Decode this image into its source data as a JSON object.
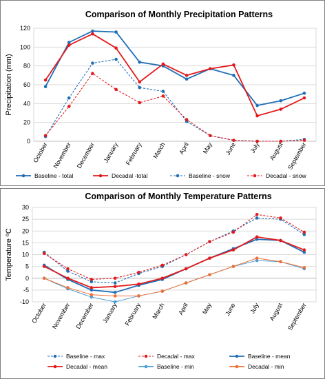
{
  "chart_data": [
    {
      "type": "line",
      "title": "Comparison of Monthly Precipitation Patterns",
      "ylabel": "Precipitation (mm)",
      "xlabel": "",
      "ylim": [
        0,
        120
      ],
      "yticks": [
        "0",
        "20",
        "40",
        "60",
        "80",
        "100",
        "120"
      ],
      "grid": "horizontal",
      "legend_position": "bottom",
      "categories": [
        "October",
        "November",
        "December",
        "January",
        "February",
        "March",
        "April",
        "May",
        "June",
        "July",
        "August",
        "September"
      ],
      "series": [
        {
          "name": "Baseline - total",
          "color": "#1f6fb8",
          "style": "solid",
          "values": [
            58,
            105,
            117,
            116,
            84,
            80,
            66,
            77,
            70,
            38,
            43,
            51
          ]
        },
        {
          "name": "Decadal -total",
          "color": "#e31a1c",
          "style": "solid",
          "values": [
            65,
            102,
            114,
            99,
            63,
            82,
            70,
            77,
            81,
            27,
            34,
            46
          ]
        },
        {
          "name": "Baseline - snow",
          "color": "#1f6fb8",
          "style": "dashed",
          "values": [
            5,
            46,
            83,
            87,
            57,
            53,
            21,
            6,
            1,
            0,
            0,
            2
          ]
        },
        {
          "name": "Decadal - snow",
          "color": "#e31a1c",
          "style": "dashed",
          "values": [
            6,
            37,
            72,
            55,
            41,
            48,
            23,
            6,
            1,
            0,
            0,
            1
          ]
        }
      ]
    },
    {
      "type": "line",
      "title": "Comparison of Monthly Temperature Patterns",
      "ylabel": "Temperature ºC",
      "xlabel": "",
      "ylim": [
        -10,
        30
      ],
      "yticks": [
        "-10",
        "-5",
        "0",
        "5",
        "10",
        "15",
        "20",
        "25",
        "30"
      ],
      "grid": "horizontal",
      "legend_position": "bottom",
      "categories": [
        "October",
        "November",
        "December",
        "January",
        "February",
        "March",
        "April",
        "May",
        "June",
        "July",
        "August",
        "September"
      ],
      "series": [
        {
          "name": "Baseline - max",
          "color": "#1f6fb8",
          "style": "dashed",
          "values": [
            11,
            3,
            -1.5,
            -2,
            2,
            5,
            10,
            15.5,
            20,
            25.5,
            25,
            18.5
          ]
        },
        {
          "name": "Decadal - max",
          "color": "#e31a1c",
          "style": "dashed",
          "values": [
            10.5,
            4,
            -0.5,
            0,
            2.5,
            5.5,
            10,
            15.5,
            19.5,
            27,
            25.5,
            19.5
          ]
        },
        {
          "name": "Baseline - mean",
          "color": "#1f6fb8",
          "style": "solid",
          "values": [
            5.5,
            -0.5,
            -5,
            -6,
            -3,
            -0.5,
            4,
            8.5,
            12.5,
            16.5,
            16,
            11
          ]
        },
        {
          "name": "Decadal - mean",
          "color": "#e31a1c",
          "style": "solid",
          "values": [
            5,
            0,
            -4,
            -3.5,
            -2.5,
            0,
            4,
            8.5,
            12,
            17.5,
            16,
            12
          ]
        },
        {
          "name": "Baseline - min",
          "color": "#4a9fd8",
          "style": "solid-thin",
          "values": [
            0,
            -4.5,
            -8,
            -10,
            -7.5,
            -5.5,
            -2,
            1.5,
            5,
            7.5,
            7,
            4
          ]
        },
        {
          "name": "Decadal - min",
          "color": "#f07033",
          "style": "solid-thin",
          "values": [
            0,
            -4,
            -7,
            -7.5,
            -7.5,
            -5.5,
            -2,
            1.5,
            5,
            8.5,
            7,
            4.5
          ]
        }
      ]
    }
  ]
}
